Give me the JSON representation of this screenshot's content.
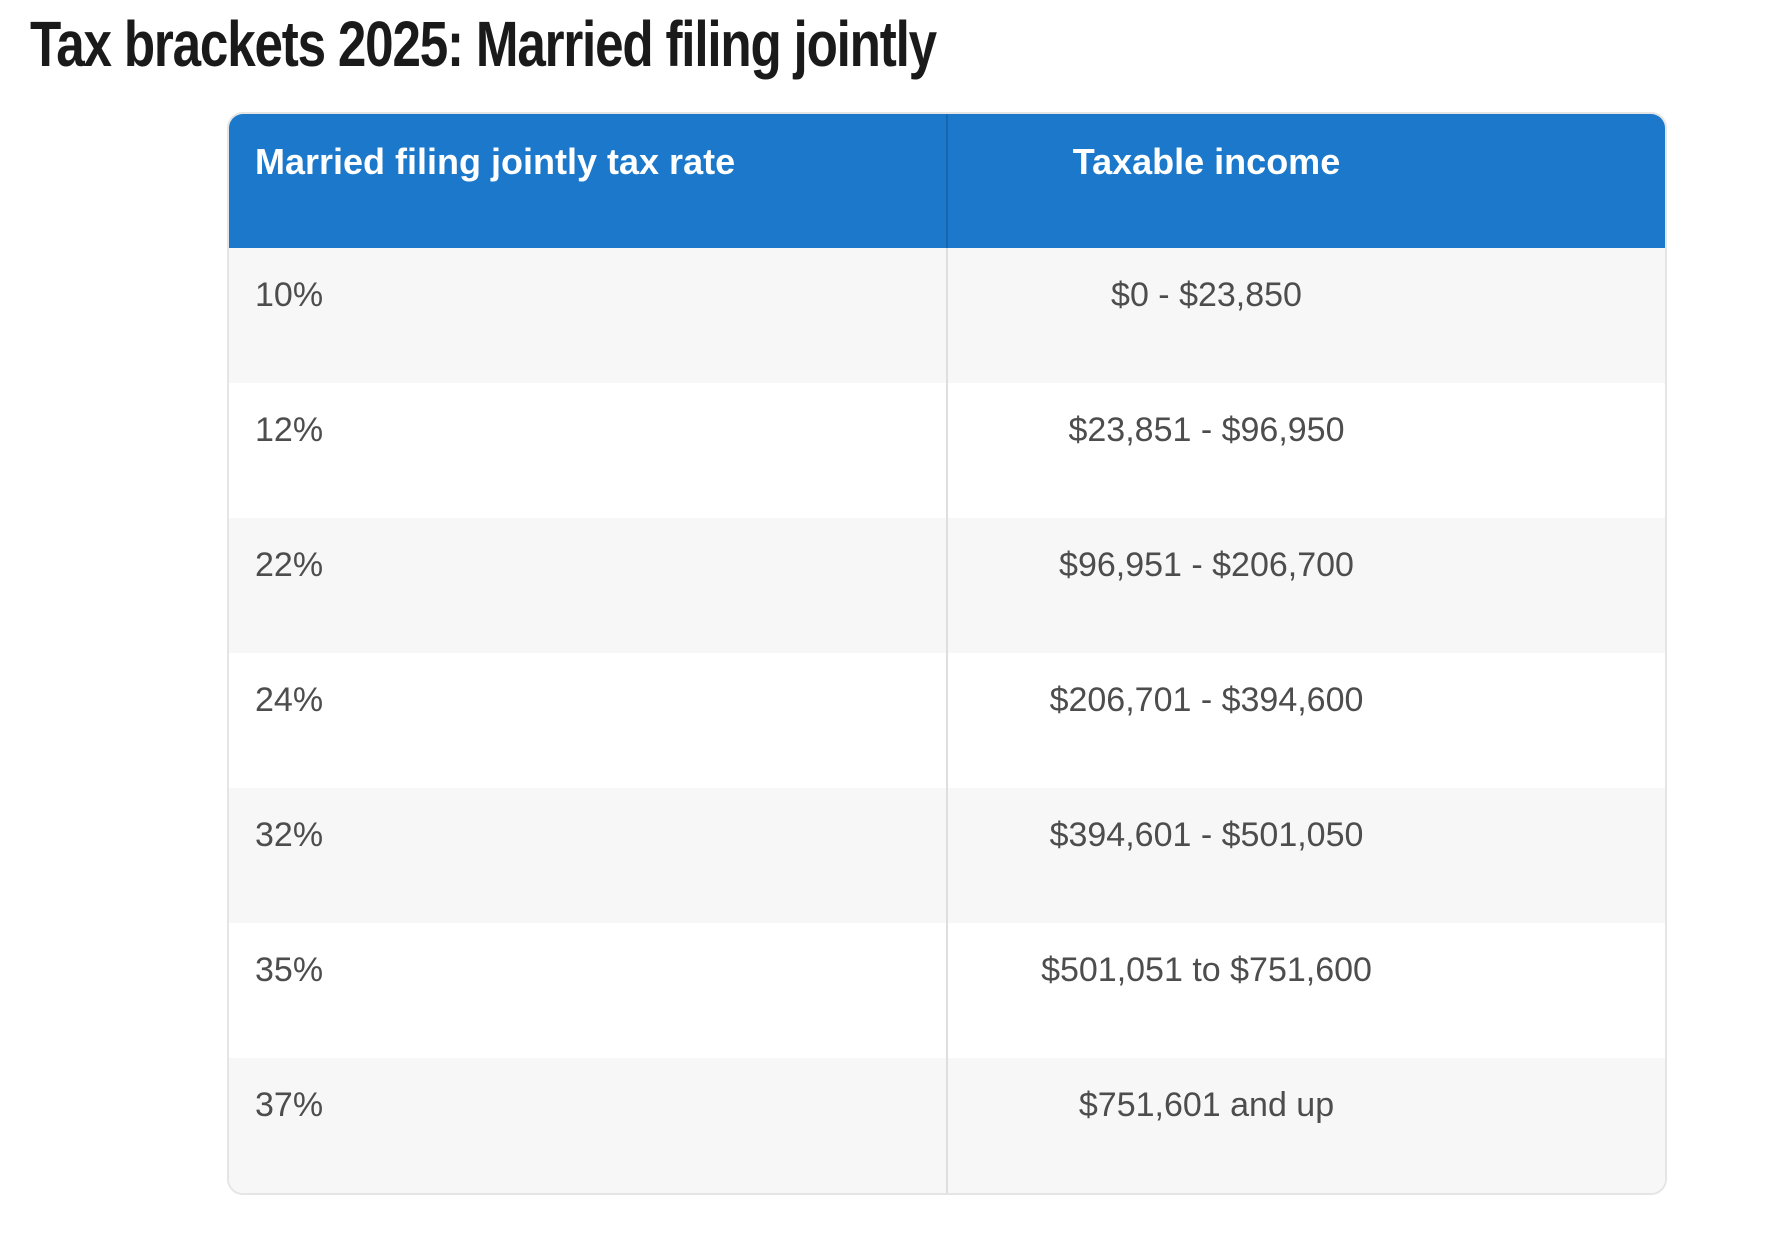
{
  "title": "Tax brackets 2025: Married filing jointly",
  "table": {
    "columns": {
      "rate": "Married filing jointly tax rate",
      "income": "Taxable income"
    },
    "rows": [
      {
        "rate": "10%",
        "income": "$0 - $23,850"
      },
      {
        "rate": "12%",
        "income": "$23,851 - $96,950"
      },
      {
        "rate": "22%",
        "income": "$96,951 - $206,700"
      },
      {
        "rate": "24%",
        "income": "$206,701 - $394,600"
      },
      {
        "rate": "32%",
        "income": "$394,601 - $501,050"
      },
      {
        "rate": "35%",
        "income": "$501,051 to $751,600"
      },
      {
        "rate": "37%",
        "income": "$751,601 and up"
      }
    ]
  },
  "colors": {
    "header_bg": "#1b78ca",
    "header_divider": "#1566ae",
    "header_text": "#ffffff",
    "row_alt_bg": "#f7f7f7",
    "row_bg": "#ffffff",
    "body_text": "#4d4d4d",
    "table_border": "#e5e5e5",
    "column_divider": "#dedede",
    "title_text": "#1a1a1a"
  },
  "chart_data": {
    "type": "table",
    "title": "Tax brackets 2025: Married filing jointly",
    "columns": [
      "Married filing jointly tax rate",
      "Taxable income"
    ],
    "rows": [
      [
        "10%",
        "$0 - $23,850"
      ],
      [
        "12%",
        "$23,851 - $96,950"
      ],
      [
        "22%",
        "$96,951 - $206,700"
      ],
      [
        "24%",
        "$206,701 - $394,600"
      ],
      [
        "32%",
        "$394,601 - $501,050"
      ],
      [
        "35%",
        "$501,051 to $751,600"
      ],
      [
        "37%",
        "$751,601 and up"
      ]
    ]
  }
}
